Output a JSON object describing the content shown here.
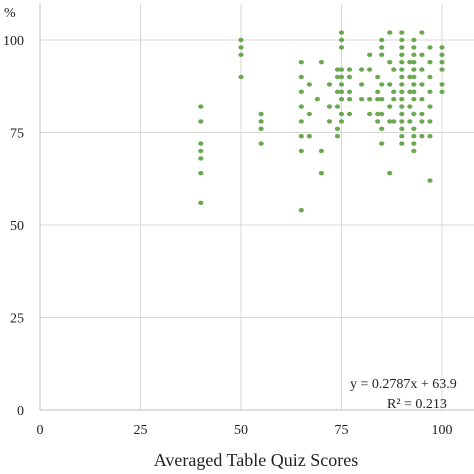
{
  "chart_data": {
    "type": "scatter",
    "title": "",
    "xlabel": "Averaged Table Quiz Scores",
    "ylabel": "%",
    "xlim": [
      0,
      100
    ],
    "ylim": [
      0,
      100
    ],
    "xticks": [
      "0",
      "25",
      "50",
      "75",
      "100"
    ],
    "yticks": [
      "0",
      "25",
      "50",
      "75",
      "100"
    ],
    "grid": true,
    "marker_color": "#6aa84f",
    "points": [
      [
        40,
        82
      ],
      [
        40,
        78
      ],
      [
        40,
        72
      ],
      [
        40,
        70
      ],
      [
        40,
        68
      ],
      [
        40,
        64
      ],
      [
        40,
        56
      ],
      [
        50,
        100
      ],
      [
        50,
        98
      ],
      [
        50,
        96
      ],
      [
        50,
        90
      ],
      [
        55,
        80
      ],
      [
        55,
        78
      ],
      [
        55,
        76
      ],
      [
        55,
        72
      ],
      [
        65,
        94
      ],
      [
        65,
        90
      ],
      [
        65,
        86
      ],
      [
        65,
        82
      ],
      [
        65,
        78
      ],
      [
        65,
        74
      ],
      [
        65,
        70
      ],
      [
        65,
        54
      ],
      [
        67,
        88
      ],
      [
        67,
        80
      ],
      [
        67,
        74
      ],
      [
        69,
        84
      ],
      [
        70,
        94
      ],
      [
        70,
        70
      ],
      [
        70,
        64
      ],
      [
        72,
        88
      ],
      [
        72,
        82
      ],
      [
        72,
        78
      ],
      [
        74,
        92
      ],
      [
        74,
        90
      ],
      [
        74,
        86
      ],
      [
        74,
        82
      ],
      [
        74,
        76
      ],
      [
        74,
        74
      ],
      [
        75,
        102
      ],
      [
        75,
        100
      ],
      [
        75,
        98
      ],
      [
        75,
        92
      ],
      [
        75,
        90
      ],
      [
        75,
        88
      ],
      [
        75,
        86
      ],
      [
        75,
        84
      ],
      [
        75,
        80
      ],
      [
        75,
        78
      ],
      [
        77,
        92
      ],
      [
        77,
        90
      ],
      [
        77,
        86
      ],
      [
        77,
        84
      ],
      [
        77,
        80
      ],
      [
        80,
        92
      ],
      [
        80,
        88
      ],
      [
        80,
        84
      ],
      [
        82,
        96
      ],
      [
        82,
        92
      ],
      [
        82,
        84
      ],
      [
        82,
        80
      ],
      [
        84,
        90
      ],
      [
        84,
        86
      ],
      [
        84,
        84
      ],
      [
        84,
        80
      ],
      [
        84,
        78
      ],
      [
        85,
        100
      ],
      [
        85,
        98
      ],
      [
        85,
        96
      ],
      [
        85,
        88
      ],
      [
        85,
        84
      ],
      [
        85,
        80
      ],
      [
        85,
        76
      ],
      [
        85,
        72
      ],
      [
        87,
        102
      ],
      [
        87,
        94
      ],
      [
        87,
        88
      ],
      [
        87,
        82
      ],
      [
        87,
        78
      ],
      [
        87,
        64
      ],
      [
        88,
        92
      ],
      [
        88,
        86
      ],
      [
        88,
        84
      ],
      [
        88,
        78
      ],
      [
        90,
        102
      ],
      [
        90,
        100
      ],
      [
        90,
        98
      ],
      [
        90,
        96
      ],
      [
        90,
        94
      ],
      [
        90,
        92
      ],
      [
        90,
        90
      ],
      [
        90,
        88
      ],
      [
        90,
        86
      ],
      [
        90,
        84
      ],
      [
        90,
        82
      ],
      [
        90,
        80
      ],
      [
        90,
        78
      ],
      [
        90,
        76
      ],
      [
        90,
        74
      ],
      [
        90,
        72
      ],
      [
        92,
        94
      ],
      [
        92,
        90
      ],
      [
        92,
        86
      ],
      [
        92,
        82
      ],
      [
        92,
        78
      ],
      [
        93,
        100
      ],
      [
        93,
        98
      ],
      [
        93,
        96
      ],
      [
        93,
        94
      ],
      [
        93,
        92
      ],
      [
        93,
        90
      ],
      [
        93,
        88
      ],
      [
        93,
        86
      ],
      [
        93,
        84
      ],
      [
        93,
        80
      ],
      [
        93,
        76
      ],
      [
        93,
        74
      ],
      [
        93,
        72
      ],
      [
        93,
        70
      ],
      [
        95,
        102
      ],
      [
        95,
        96
      ],
      [
        95,
        92
      ],
      [
        95,
        88
      ],
      [
        95,
        84
      ],
      [
        95,
        80
      ],
      [
        95,
        78
      ],
      [
        95,
        74
      ],
      [
        97,
        98
      ],
      [
        97,
        94
      ],
      [
        97,
        90
      ],
      [
        97,
        86
      ],
      [
        97,
        82
      ],
      [
        97,
        78
      ],
      [
        97,
        74
      ],
      [
        97,
        62
      ],
      [
        100,
        98
      ],
      [
        100,
        96
      ],
      [
        100,
        94
      ],
      [
        100,
        92
      ],
      [
        100,
        88
      ],
      [
        100,
        86
      ]
    ],
    "annotations": {
      "equation": "y = 0.2787x + 63.9",
      "r_squared": "R² = 0.213"
    }
  }
}
